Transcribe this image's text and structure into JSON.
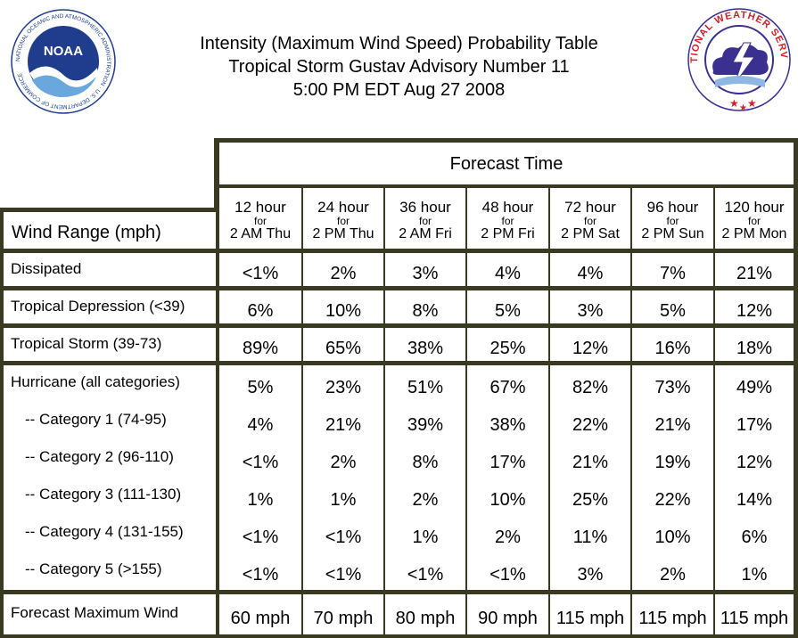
{
  "title": {
    "line1": "Intensity (Maximum Wind Speed) Probability Table",
    "line2": "Tropical Storm Gustav Advisory Number 11",
    "line3": "5:00 PM EDT Aug 27 2008"
  },
  "logos": {
    "noaa_text": "NOAA",
    "noaa_ring": "NATIONAL OCEANIC AND ATMOSPHERIC ADMINISTRATION · U.S. DEPARTMENT OF COMMERCE",
    "nws_ring": "NATIONAL WEATHER SERVICE"
  },
  "table": {
    "forecast_time_label": "Forecast Time",
    "wind_range_label": "Wind Range (mph)",
    "columns": [
      {
        "hour": "12 hour",
        "for": "for",
        "time": "2 AM Thu"
      },
      {
        "hour": "24 hour",
        "for": "for",
        "time": "2 PM Thu"
      },
      {
        "hour": "36 hour",
        "for": "for",
        "time": "2 AM Fri"
      },
      {
        "hour": "48 hour",
        "for": "for",
        "time": "2 PM Fri"
      },
      {
        "hour": "72 hour",
        "for": "for",
        "time": "2 PM Sat"
      },
      {
        "hour": "96 hour",
        "for": "for",
        "time": "2 PM Sun"
      },
      {
        "hour": "120 hour",
        "for": "for",
        "time": "2 PM Mon"
      }
    ],
    "rows": [
      {
        "label": "Dissipated",
        "values": [
          "<1%",
          "2%",
          "3%",
          "4%",
          "4%",
          "7%",
          "21%"
        ]
      },
      {
        "label": "Tropical Depression (<39)",
        "values": [
          "6%",
          "10%",
          "8%",
          "5%",
          "3%",
          "5%",
          "12%"
        ]
      },
      {
        "label": "Tropical Storm (39-73)",
        "values": [
          "89%",
          "65%",
          "38%",
          "25%",
          "12%",
          "16%",
          "18%"
        ]
      }
    ],
    "hurricane": [
      {
        "label": "Hurricane (all categories)",
        "values": [
          "5%",
          "23%",
          "51%",
          "67%",
          "82%",
          "73%",
          "49%"
        ]
      },
      {
        "label": "-- Category 1 (74-95)",
        "values": [
          "4%",
          "21%",
          "39%",
          "38%",
          "22%",
          "21%",
          "17%"
        ]
      },
      {
        "label": "-- Category 2 (96-110)",
        "values": [
          "<1%",
          "2%",
          "8%",
          "17%",
          "21%",
          "19%",
          "12%"
        ]
      },
      {
        "label": "-- Category 3 (111-130)",
        "values": [
          "1%",
          "1%",
          "2%",
          "10%",
          "25%",
          "22%",
          "14%"
        ]
      },
      {
        "label": "-- Category 4 (131-155)",
        "values": [
          "<1%",
          "<1%",
          "1%",
          "2%",
          "11%",
          "10%",
          "6%"
        ]
      },
      {
        "label": "-- Category 5 (>155)",
        "values": [
          "<1%",
          "<1%",
          "<1%",
          "<1%",
          "3%",
          "2%",
          "1%"
        ]
      }
    ],
    "max_wind": {
      "label": "Forecast Maximum Wind",
      "values": [
        "60 mph",
        "70 mph",
        "80 mph",
        "90 mph",
        "115 mph",
        "115 mph",
        "115 mph"
      ]
    }
  },
  "colors": {
    "border": "#3a3a23",
    "noaa_blue": "#1f3d8c",
    "nws_red": "#d0202a",
    "nws_cloud": "#3b2f8f"
  }
}
